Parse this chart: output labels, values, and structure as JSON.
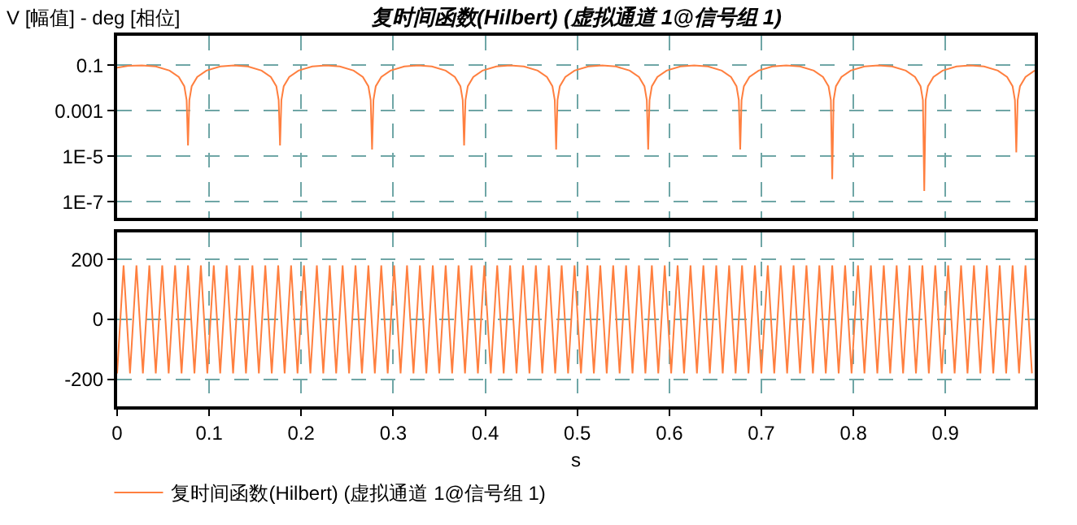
{
  "chart_data": [
    {
      "type": "line",
      "title": "复时间函数(Hilbert) (虚拟通道 1@信号组 1)",
      "ylabel": "V [幅值] - deg [相位]",
      "log": "y",
      "grid": true,
      "tick_labels": "y",
      "xlim": [
        0,
        0.997
      ],
      "xticks": [
        0,
        0.1,
        0.2,
        0.3,
        0.4,
        0.5,
        0.6,
        0.7,
        0.8,
        0.9
      ],
      "ylim": [
        2e-08,
        2
      ],
      "yticks": [
        0.1,
        0.001,
        {
          "value": 1e-05,
          "label": "1E-5"
        },
        {
          "value": 1e-07,
          "label": "1E-7"
        }
      ],
      "series": [
        {
          "color": "#ff7f3f",
          "x": [
            0,
            0.012,
            0.027,
            0.042,
            0.057,
            0.067,
            0.073,
            0.0755,
            0.077,
            0.0785,
            0.081,
            0.087,
            0.097,
            0.112,
            0.127,
            0.142,
            0.157,
            0.167,
            0.173,
            0.1755,
            0.177,
            0.1785,
            0.181,
            0.187,
            0.197,
            0.212,
            0.227,
            0.242,
            0.257,
            0.267,
            0.273,
            0.2755,
            0.277,
            0.2785,
            0.281,
            0.287,
            0.297,
            0.312,
            0.327,
            0.342,
            0.357,
            0.367,
            0.373,
            0.3755,
            0.377,
            0.3785,
            0.381,
            0.387,
            0.397,
            0.412,
            0.427,
            0.442,
            0.457,
            0.467,
            0.473,
            0.4755,
            0.477,
            0.4785,
            0.481,
            0.487,
            0.497,
            0.512,
            0.527,
            0.542,
            0.557,
            0.567,
            0.573,
            0.5755,
            0.577,
            0.5785,
            0.581,
            0.587,
            0.597,
            0.612,
            0.627,
            0.642,
            0.657,
            0.667,
            0.673,
            0.6755,
            0.677,
            0.6785,
            0.681,
            0.687,
            0.697,
            0.712,
            0.727,
            0.742,
            0.757,
            0.767,
            0.773,
            0.7755,
            0.777,
            0.7785,
            0.781,
            0.787,
            0.797,
            0.812,
            0.827,
            0.842,
            0.857,
            0.867,
            0.873,
            0.8755,
            0.877,
            0.8785,
            0.881,
            0.887,
            0.897,
            0.912,
            0.927,
            0.942,
            0.957,
            0.967,
            0.973,
            0.9755,
            0.977,
            0.9785,
            0.981,
            0.987,
            0.997
          ],
          "values": [
            0.08,
            0.095,
            0.1,
            0.089,
            0.059,
            0.031,
            0.012,
            0.003,
            3e-05,
            0.003,
            0.012,
            0.031,
            0.059,
            0.089,
            0.1,
            0.089,
            0.059,
            0.031,
            0.012,
            0.003,
            3e-05,
            0.003,
            0.012,
            0.031,
            0.059,
            0.089,
            0.1,
            0.089,
            0.059,
            0.031,
            0.012,
            0.003,
            2e-05,
            0.003,
            0.012,
            0.031,
            0.059,
            0.089,
            0.1,
            0.089,
            0.059,
            0.031,
            0.012,
            0.003,
            3e-05,
            0.003,
            0.012,
            0.031,
            0.059,
            0.089,
            0.1,
            0.089,
            0.059,
            0.031,
            0.012,
            0.003,
            2e-05,
            0.003,
            0.012,
            0.031,
            0.059,
            0.089,
            0.1,
            0.089,
            0.059,
            0.031,
            0.012,
            0.003,
            2e-05,
            0.003,
            0.012,
            0.031,
            0.059,
            0.089,
            0.1,
            0.089,
            0.059,
            0.031,
            0.012,
            0.003,
            2e-05,
            0.003,
            0.012,
            0.031,
            0.059,
            0.089,
            0.1,
            0.089,
            0.059,
            0.031,
            0.012,
            0.003,
            1e-06,
            0.003,
            0.012,
            0.031,
            0.059,
            0.089,
            0.1,
            0.089,
            0.059,
            0.031,
            0.012,
            0.003,
            3e-07,
            0.003,
            0.012,
            0.031,
            0.059,
            0.089,
            0.1,
            0.089,
            0.059,
            0.031,
            0.012,
            0.003,
            1.5e-05,
            0.003,
            0.012,
            0.031,
            0.059
          ]
        }
      ]
    },
    {
      "type": "line",
      "xlabel": "s",
      "grid": true,
      "legend": "bottom left",
      "xlim": [
        0,
        0.997
      ],
      "xticks": [
        0,
        0.1,
        0.2,
        0.3,
        0.4,
        0.5,
        0.6,
        0.7,
        0.8,
        0.9
      ],
      "ylim": [
        -290,
        290
      ],
      "yticks": [
        200,
        0,
        -200
      ],
      "series": [
        {
          "name": "复时间函数(Hilbert) (虚拟通道 1@信号组 1)",
          "color": "#ff7f3f",
          "x": [
            0,
            0.007,
            0.014,
            0.021,
            0.028,
            0.035,
            0.042,
            0.049,
            0.056,
            0.063,
            0.07,
            0.077,
            0.084,
            0.091,
            0.098,
            0.105,
            0.112,
            0.119,
            0.126,
            0.133,
            0.14,
            0.147,
            0.154,
            0.161,
            0.168,
            0.175,
            0.182,
            0.189,
            0.196,
            0.203,
            0.21,
            0.217,
            0.224,
            0.231,
            0.238,
            0.245,
            0.252,
            0.259,
            0.266,
            0.273,
            0.28,
            0.287,
            0.294,
            0.301,
            0.308,
            0.315,
            0.322,
            0.329,
            0.336,
            0.343,
            0.35,
            0.357,
            0.364,
            0.371,
            0.378,
            0.385,
            0.392,
            0.399,
            0.406,
            0.413,
            0.42,
            0.427,
            0.434,
            0.441,
            0.448,
            0.455,
            0.462,
            0.469,
            0.476,
            0.483,
            0.49,
            0.497,
            0.504,
            0.511,
            0.518,
            0.525,
            0.532,
            0.539,
            0.546,
            0.553,
            0.56,
            0.567,
            0.574,
            0.581,
            0.588,
            0.595,
            0.602,
            0.609,
            0.616,
            0.623,
            0.63,
            0.637,
            0.644,
            0.651,
            0.658,
            0.665,
            0.672,
            0.679,
            0.686,
            0.693,
            0.7,
            0.707,
            0.714,
            0.721,
            0.728,
            0.735,
            0.742,
            0.749,
            0.756,
            0.763,
            0.77,
            0.777,
            0.784,
            0.791,
            0.798,
            0.805,
            0.812,
            0.819,
            0.826,
            0.833,
            0.84,
            0.847,
            0.854,
            0.861,
            0.868,
            0.875,
            0.882,
            0.889,
            0.896,
            0.903,
            0.91,
            0.917,
            0.924,
            0.931,
            0.938,
            0.945,
            0.952,
            0.959,
            0.966,
            0.973,
            0.98,
            0.987,
            0.994
          ],
          "values": [
            -180,
            180,
            -180,
            180,
            -180,
            180,
            -180,
            180,
            -180,
            180,
            -180,
            180,
            -180,
            180,
            -180,
            180,
            -180,
            180,
            -180,
            180,
            -180,
            180,
            -180,
            180,
            -180,
            180,
            -180,
            180,
            -180,
            180,
            -180,
            180,
            -180,
            180,
            -180,
            180,
            -180,
            180,
            -180,
            180,
            -180,
            180,
            -180,
            180,
            -180,
            180,
            -180,
            180,
            -180,
            180,
            -180,
            180,
            -180,
            180,
            -180,
            180,
            -180,
            180,
            -180,
            180,
            -180,
            180,
            -180,
            180,
            -180,
            180,
            -180,
            180,
            -180,
            180,
            -180,
            180,
            -180,
            180,
            -180,
            180,
            -180,
            180,
            -180,
            180,
            -180,
            180,
            -180,
            180,
            -180,
            180,
            -180,
            180,
            -180,
            180,
            -180,
            180,
            -180,
            180,
            -180,
            180,
            -180,
            180,
            -180,
            180,
            -180,
            180,
            -180,
            180,
            -180,
            180,
            -180,
            180,
            -180,
            180,
            -180,
            180,
            -180,
            180,
            -180,
            180,
            -180,
            180,
            -180,
            180,
            -180,
            180,
            -180,
            180,
            -180,
            180,
            -180,
            180,
            -180,
            180,
            -180,
            180,
            -180,
            180,
            -180,
            180,
            -180,
            180,
            -180,
            180,
            -180,
            180,
            -180
          ]
        }
      ]
    }
  ]
}
